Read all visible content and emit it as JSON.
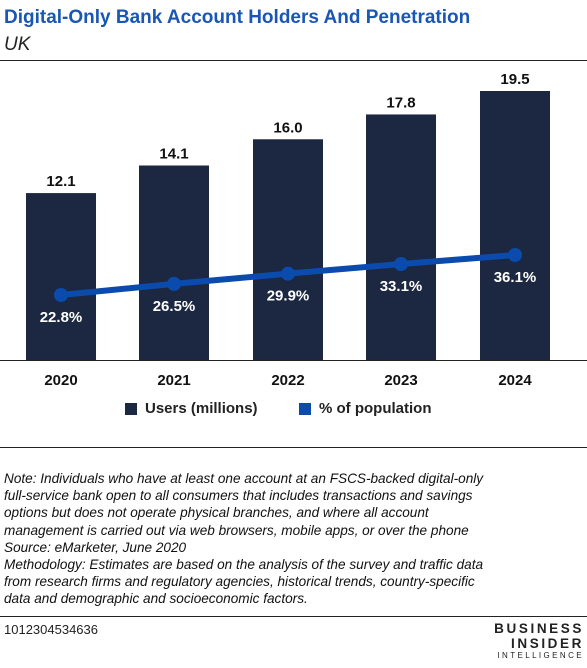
{
  "header": {
    "title": "Digital-Only Bank Account Holders And Penetration",
    "subtitle": "UK"
  },
  "chart_data": {
    "type": "bar",
    "title": "Digital-Only Bank Account Holders And Penetration",
    "subtitle": "UK",
    "categories": [
      "2020",
      "2021",
      "2022",
      "2023",
      "2024"
    ],
    "series": [
      {
        "name": "Users (millions)",
        "type": "bar",
        "values": [
          12.1,
          14.1,
          16.0,
          17.8,
          19.5
        ],
        "labels": [
          "12.1",
          "14.1",
          "16.0",
          "17.8",
          "19.5"
        ],
        "color": "#1c2841"
      },
      {
        "name": "% of population",
        "type": "line",
        "values": [
          22.8,
          26.5,
          29.9,
          33.1,
          36.1
        ],
        "labels": [
          "22.8%",
          "26.5%",
          "29.9%",
          "33.1%",
          "36.1%"
        ],
        "color": "#0a4bad"
      }
    ],
    "legend_position": "bottom",
    "grid": false
  },
  "legend": {
    "items": [
      {
        "label": "Users (millions)",
        "color": "#1c2841"
      },
      {
        "label": "% of population",
        "color": "#0a4bad"
      }
    ]
  },
  "notes": [
    "Note: Individuals who have at least one account at an FSCS-backed digital-only",
    "full-service bank open to all consumers that includes transactions and savings",
    "options but does not operate physical branches, and where all account",
    "management is carried out via web browsers, mobile apps, or over the phone",
    "Source: eMarketer, June 2020",
    "Methodology: Estimates are based on the analysis of the survey and traffic data",
    "from research firms and regulatory agencies, historical trends, country-specific",
    "data and demographic and socioeconomic factors."
  ],
  "footer": {
    "code": "1012304534636",
    "brand_line1": "BUSINESS",
    "brand_line2": "INSIDER",
    "brand_line3": "INTELLIGENCE"
  }
}
